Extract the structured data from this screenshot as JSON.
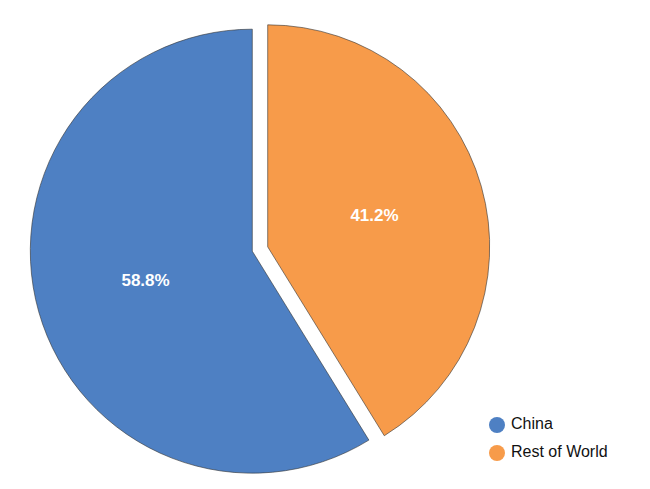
{
  "chart_data": {
    "type": "pie",
    "categories": [
      "China",
      "Rest of World"
    ],
    "values": [
      58.8,
      41.2
    ],
    "value_labels": [
      "58.8%",
      "41.2%"
    ],
    "colors": [
      "#4e80c3",
      "#f79b4a"
    ],
    "data_labels": true,
    "legend": "bottom-right"
  }
}
